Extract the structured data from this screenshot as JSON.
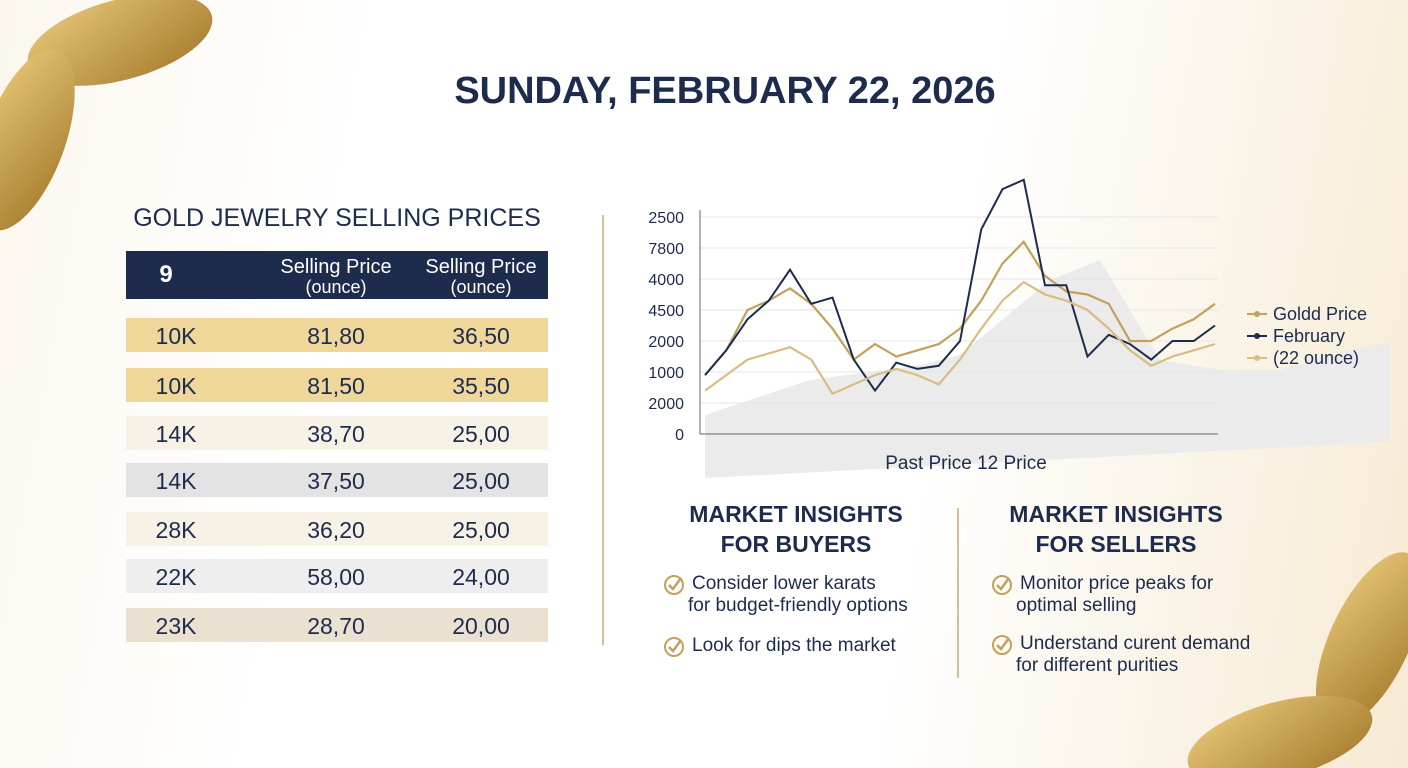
{
  "header": {
    "title": "SUNDAY, FEBRUARY 22, 2026"
  },
  "table": {
    "title": "GOLD JEWELRY SELLING PRICES",
    "columns": [
      {
        "label": "9"
      },
      {
        "label": "Selling Price",
        "unit": "(ounce)"
      },
      {
        "label": "Selling Price",
        "unit": "(ounce)"
      }
    ],
    "rows": [
      [
        "10K",
        "81,80",
        "36,50"
      ],
      [
        "10K",
        "81,50",
        "35,50"
      ],
      [
        "14K",
        "38,70",
        "25,00"
      ],
      [
        "14K",
        "37,50",
        "25,00"
      ],
      [
        "28K",
        "36,20",
        "25,00"
      ],
      [
        "22K",
        "58,00",
        "24,00"
      ],
      [
        "23K",
        "28,70",
        "20,00"
      ]
    ],
    "row_colors": [
      "#efd79a",
      "#efd79a",
      "#f7f1e6",
      "#e3e3e3",
      "#f8f1e6",
      "#eeeeee",
      "#ebe1d1"
    ]
  },
  "chart_data": {
    "type": "line",
    "x_label": "Past Price 12 Price",
    "categories": [
      null,
      null,
      null,
      null,
      null,
      null,
      null,
      null,
      null,
      null,
      null,
      null,
      null,
      null,
      null,
      null,
      null,
      null,
      null,
      null,
      null,
      null,
      null,
      null,
      null
    ],
    "ylim": [
      0,
      8.5
    ],
    "y_labels": [
      "0",
      "2000",
      "1000",
      "2000",
      "4500",
      "4000",
      "7800",
      "2500"
    ],
    "grid": true,
    "series": [
      {
        "name": "Goldd Price",
        "color": "#c2a15a",
        "values": [
          1.9,
          2.7,
          4.0,
          4.3,
          4.7,
          4.2,
          3.4,
          2.4,
          2.9,
          2.5,
          2.7,
          2.9,
          3.4,
          4.3,
          5.5,
          6.2,
          5.1,
          4.6,
          4.5,
          4.2,
          3.0,
          3.0,
          3.4,
          3.7,
          4.2
        ]
      },
      {
        "name": "February",
        "color": "#1d2b4d",
        "values": [
          1.9,
          2.7,
          3.7,
          4.3,
          5.3,
          4.2,
          4.4,
          2.4,
          1.4,
          2.3,
          2.1,
          2.2,
          3.0,
          6.6,
          7.9,
          8.2,
          4.8,
          4.8,
          2.5,
          3.2,
          2.9,
          2.4,
          3.0,
          3.0,
          3.5
        ]
      },
      {
        "name": "(22 ounce)",
        "color": "#d8bd82",
        "values": [
          1.4,
          1.9,
          2.4,
          2.6,
          2.8,
          2.4,
          1.3,
          1.6,
          1.9,
          2.1,
          1.9,
          1.6,
          2.4,
          3.4,
          4.3,
          4.9,
          4.5,
          4.3,
          4.0,
          3.4,
          2.7,
          2.2,
          2.5,
          2.7,
          2.9
        ]
      }
    ]
  },
  "insights": [
    {
      "title": [
        "MARKET INSIGHTS",
        "FOR BUYERS"
      ],
      "items": [
        [
          "Consider lower karats",
          "for budget-friendly options"
        ],
        [
          "Look for dips the market"
        ]
      ]
    },
    {
      "title": [
        "MARKET INSIGHTS",
        "FOR SELLERS"
      ],
      "items": [
        [
          "Monitor price peaks for",
          "optimal selling"
        ],
        [
          "Understand curent demand",
          "for different purities"
        ]
      ]
    }
  ]
}
